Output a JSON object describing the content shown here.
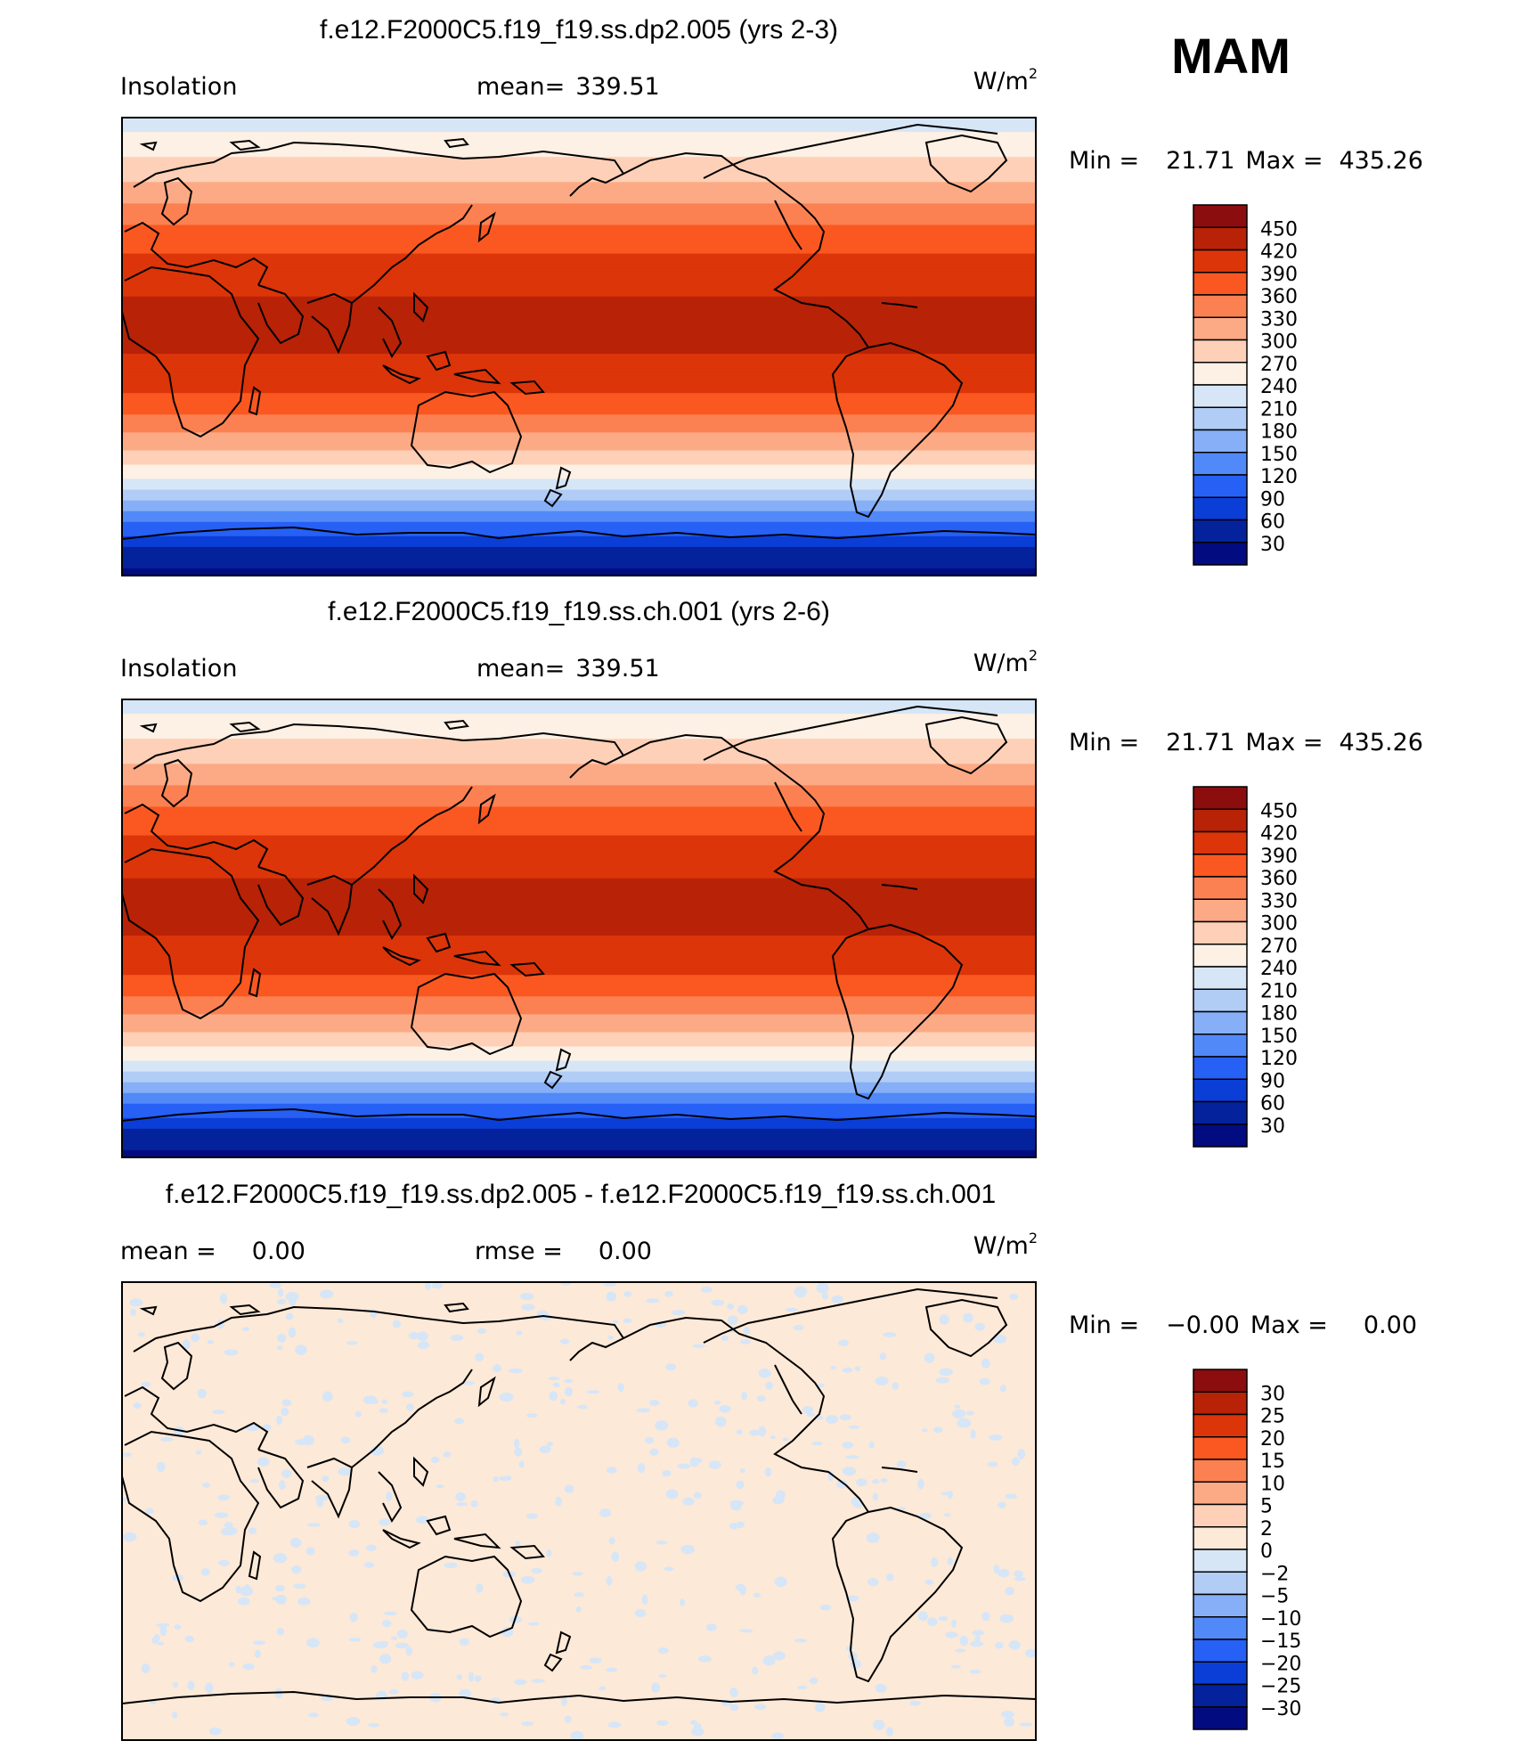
{
  "season": "MAM",
  "units_base": "W/m",
  "units_exp": "2",
  "panels": [
    {
      "title": "f.e12.F2000C5.f19_f19.ss.dp2.005 (yrs 2-3)",
      "variable": "Insolation",
      "stat_label": "mean=",
      "stat_value": "339.51",
      "min_label": "Min =",
      "min_value": "21.71",
      "max_label": "Max =",
      "max_value": "435.26"
    },
    {
      "title": "f.e12.F2000C5.f19_f19.ss.ch.001 (yrs 2-6)",
      "variable": "Insolation",
      "stat_label": "mean=",
      "stat_value": "339.51",
      "min_label": "Min =",
      "min_value": "21.71",
      "max_label": "Max =",
      "max_value": "435.26"
    },
    {
      "title": "f.e12.F2000C5.f19_f19.ss.dp2.005 - f.e12.F2000C5.f19_f19.ss.ch.001",
      "mean_label": "mean =",
      "mean_value": "0.00",
      "rmse_label": "rmse =",
      "rmse_value": "0.00",
      "min_label": "Min =",
      "min_value": "−0.00",
      "max_label": "Max =",
      "max_value": "0.00"
    }
  ],
  "chart_data": [
    {
      "type": "heatmap",
      "title": "f.e12.F2000C5.f19_f19.ss.dp2.005 (yrs 2-3)",
      "variable": "Insolation",
      "units": "W/m^2",
      "mean": 339.51,
      "min": 21.71,
      "max": 435.26,
      "colorbar_levels": [
        "450",
        "420",
        "390",
        "360",
        "330",
        "300",
        "270",
        "240",
        "210",
        "180",
        "150",
        "120",
        "90",
        "60",
        "30"
      ],
      "colorbar_colors": [
        "#8c0d0d",
        "#b82207",
        "#dc3509",
        "#fa5820",
        "#fc8152",
        "#fcaa85",
        "#fdd0b7",
        "#fdf0e4",
        "#d6e6f7",
        "#b1cdf5",
        "#86aff7",
        "#5289f8",
        "#2660f5",
        "#0b3ed6",
        "#04229c",
        "#020b80"
      ],
      "latitude_zonal_mean": [
        {
          "lat": 90,
          "value": 214
        },
        {
          "lat": 80,
          "value": 256
        },
        {
          "lat": 70,
          "value": 285
        },
        {
          "lat": 60,
          "value": 315
        },
        {
          "lat": 50,
          "value": 352
        },
        {
          "lat": 40,
          "value": 382
        },
        {
          "lat": 30,
          "value": 405
        },
        {
          "lat": 20,
          "value": 420
        },
        {
          "lat": 10,
          "value": 428
        },
        {
          "lat": 0,
          "value": 424
        },
        {
          "lat": -10,
          "value": 410
        },
        {
          "lat": -20,
          "value": 385
        },
        {
          "lat": -30,
          "value": 350
        },
        {
          "lat": -40,
          "value": 305
        },
        {
          "lat": -50,
          "value": 250
        },
        {
          "lat": -60,
          "value": 185
        },
        {
          "lat": -70,
          "value": 115
        },
        {
          "lat": -80,
          "value": 50
        },
        {
          "lat": -90,
          "value": 22
        }
      ]
    },
    {
      "type": "heatmap",
      "title": "f.e12.F2000C5.f19_f19.ss.ch.001 (yrs 2-6)",
      "variable": "Insolation",
      "units": "W/m^2",
      "mean": 339.51,
      "min": 21.71,
      "max": 435.26,
      "colorbar_levels": [
        "450",
        "420",
        "390",
        "360",
        "330",
        "300",
        "270",
        "240",
        "210",
        "180",
        "150",
        "120",
        "90",
        "60",
        "30"
      ],
      "colorbar_colors": [
        "#8c0d0d",
        "#b82207",
        "#dc3509",
        "#fa5820",
        "#fc8152",
        "#fcaa85",
        "#fdd0b7",
        "#fdf0e4",
        "#d6e6f7",
        "#b1cdf5",
        "#86aff7",
        "#5289f8",
        "#2660f5",
        "#0b3ed6",
        "#04229c",
        "#020b80"
      ],
      "latitude_zonal_mean": [
        {
          "lat": 90,
          "value": 214
        },
        {
          "lat": 80,
          "value": 256
        },
        {
          "lat": 70,
          "value": 285
        },
        {
          "lat": 60,
          "value": 315
        },
        {
          "lat": 50,
          "value": 352
        },
        {
          "lat": 40,
          "value": 382
        },
        {
          "lat": 30,
          "value": 405
        },
        {
          "lat": 20,
          "value": 420
        },
        {
          "lat": 10,
          "value": 428
        },
        {
          "lat": 0,
          "value": 424
        },
        {
          "lat": -10,
          "value": 410
        },
        {
          "lat": -20,
          "value": 385
        },
        {
          "lat": -30,
          "value": 350
        },
        {
          "lat": -40,
          "value": 305
        },
        {
          "lat": -50,
          "value": 250
        },
        {
          "lat": -60,
          "value": 185
        },
        {
          "lat": -70,
          "value": 115
        },
        {
          "lat": -80,
          "value": 50
        },
        {
          "lat": -90,
          "value": 22
        }
      ]
    },
    {
      "type": "heatmap",
      "title": "f.e12.F2000C5.f19_f19.ss.dp2.005 - f.e12.F2000C5.f19_f19.ss.ch.001",
      "units": "W/m^2",
      "mean": 0.0,
      "rmse": 0.0,
      "min": -0.0,
      "max": 0.0,
      "colorbar_levels": [
        "30",
        "25",
        "20",
        "15",
        "10",
        "5",
        "2",
        "0",
        "−2",
        "−5",
        "−10",
        "−15",
        "−20",
        "−25",
        "−30"
      ],
      "colorbar_colors": [
        "#8c0d0d",
        "#b82207",
        "#dc3509",
        "#fa5820",
        "#fc8152",
        "#fcaa85",
        "#fdd0b7",
        "#fde9d7",
        "#d6e6f7",
        "#b1cdf5",
        "#86aff7",
        "#5289f8",
        "#2660f5",
        "#0b3ed6",
        "#04229c",
        "#020b80"
      ],
      "field": "near-zero everywhere (0 to 2 with scattered 0 to -2 patches)"
    }
  ]
}
